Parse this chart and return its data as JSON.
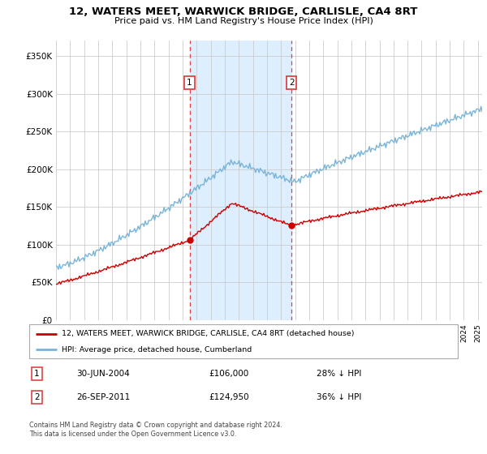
{
  "title": "12, WATERS MEET, WARWICK BRIDGE, CARLISLE, CA4 8RT",
  "subtitle": "Price paid vs. HM Land Registry's House Price Index (HPI)",
  "ylabel_ticks": [
    "£0",
    "£50K",
    "£100K",
    "£150K",
    "£200K",
    "£250K",
    "£300K",
    "£350K"
  ],
  "ytick_values": [
    0,
    50000,
    100000,
    150000,
    200000,
    250000,
    300000,
    350000
  ],
  "ylim": [
    0,
    370000
  ],
  "xlim_start": 1995.0,
  "xlim_end": 2025.3,
  "hpi_color": "#7ab4d8",
  "price_color": "#cc0000",
  "sale1_date": 2004.5,
  "sale1_price": 106000,
  "sale2_date": 2011.75,
  "sale2_price": 124950,
  "legend_label1": "12, WATERS MEET, WARWICK BRIDGE, CARLISLE, CA4 8RT (detached house)",
  "legend_label2": "HPI: Average price, detached house, Cumberland",
  "table_row1": [
    "1",
    "30-JUN-2004",
    "£106,000",
    "28% ↓ HPI"
  ],
  "table_row2": [
    "2",
    "26-SEP-2011",
    "£124,950",
    "36% ↓ HPI"
  ],
  "footnote1": "Contains HM Land Registry data © Crown copyright and database right 2024.",
  "footnote2": "This data is licensed under the Open Government Licence v3.0.",
  "grid_color": "#cccccc",
  "shade_color": "#ddeeff",
  "vline_color": "#dd4444"
}
